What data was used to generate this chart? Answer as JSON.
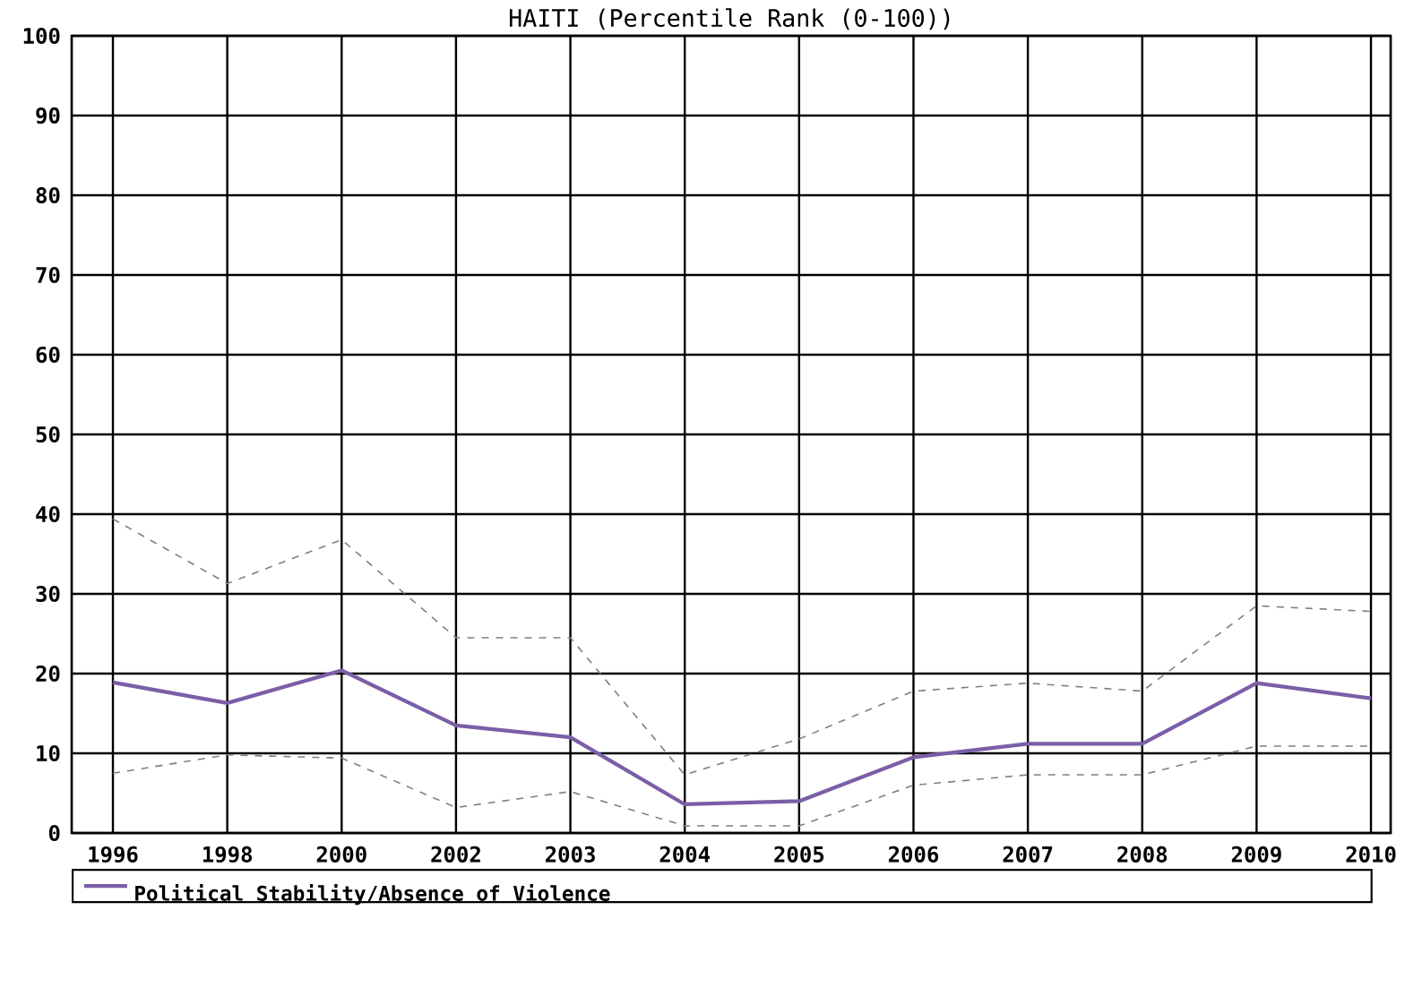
{
  "chart_data": {
    "type": "line",
    "title": "HAITI (Percentile Rank (0-100))",
    "categories": [
      "1996",
      "1998",
      "2000",
      "2002",
      "2003",
      "2004",
      "2005",
      "2006",
      "2007",
      "2008",
      "2009",
      "2010"
    ],
    "series": [
      {
        "name": "Political Stability/Absence of Violence",
        "color": "#7b5ea7",
        "values": [
          18.9,
          16.3,
          20.4,
          13.5,
          12.0,
          3.6,
          4.0,
          9.5,
          11.2,
          11.2,
          18.8,
          16.9
        ]
      },
      {
        "color": "#808080",
        "line_style": "dashed",
        "values": [
          7.5,
          9.8,
          9.4,
          3.2,
          5.2,
          0.9,
          0.9,
          6.0,
          7.3,
          7.3,
          10.9,
          10.9
        ]
      },
      {
        "color": "#808080",
        "line_style": "dashed",
        "values": [
          39.4,
          31.3,
          36.8,
          24.5,
          24.5,
          7.3,
          11.8,
          17.8,
          18.8,
          17.8,
          28.5,
          27.8
        ]
      }
    ],
    "ylim": [
      0,
      100
    ],
    "yticks": [
      0,
      10,
      20,
      30,
      40,
      50,
      60,
      70,
      80,
      90,
      100
    ],
    "grid": true,
    "legend": "bottom",
    "marker": "none",
    "line_style": "solid"
  }
}
